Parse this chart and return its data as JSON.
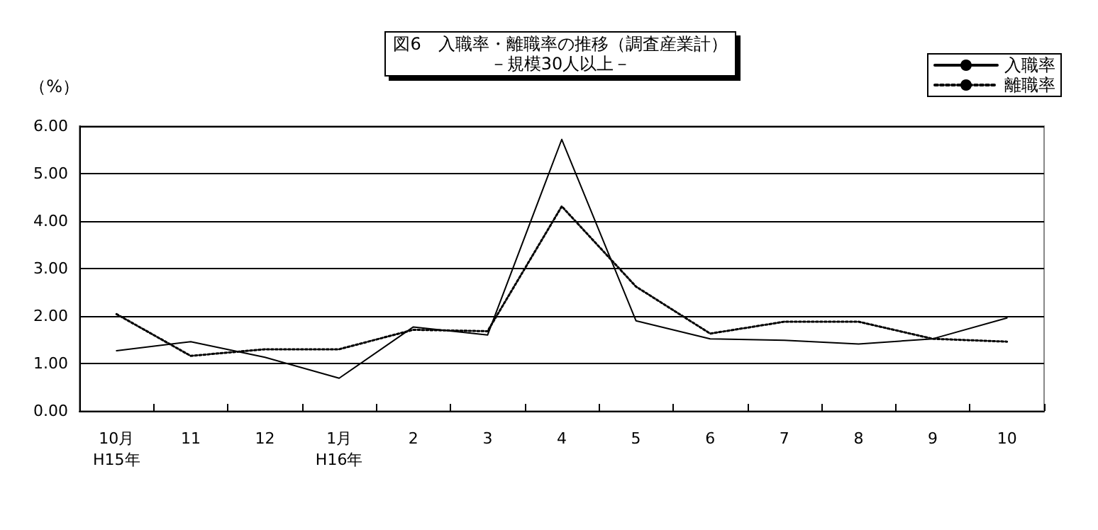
{
  "chart_data": {
    "type": "line",
    "title": "図6　入職率・離職率の推移（調査産業計）",
    "subtitle": "－規模30人以上－",
    "ylabel": "（%）",
    "categories": [
      "10月\nH15年",
      "11",
      "12",
      "1月\nH16年",
      "2",
      "3",
      "4",
      "5",
      "6",
      "7",
      "8",
      "9",
      "10"
    ],
    "series": [
      {
        "name": "入職率",
        "color": "#000000",
        "line_style": "solid",
        "values": [
          1.27,
          1.46,
          1.13,
          0.69,
          1.77,
          1.6,
          5.72,
          1.9,
          1.52,
          1.49,
          1.41,
          1.52,
          1.96
        ]
      },
      {
        "name": "離職率",
        "color": "#000000",
        "line_style": "dotted",
        "values": [
          2.04,
          1.16,
          1.3,
          1.3,
          1.71,
          1.68,
          4.31,
          2.62,
          1.63,
          1.88,
          1.88,
          1.52,
          1.46
        ]
      }
    ],
    "ylim": [
      0,
      6
    ],
    "yticks": [
      {
        "value": 0,
        "label": "0.00"
      },
      {
        "value": 1,
        "label": "1.00"
      },
      {
        "value": 2,
        "label": "2.00"
      },
      {
        "value": 3,
        "label": "3.00"
      },
      {
        "value": 4,
        "label": "4.00"
      },
      {
        "value": 5,
        "label": "5.00"
      },
      {
        "value": 6,
        "label": "6.00"
      }
    ],
    "grid": "y",
    "legend": "top right",
    "marker": "none"
  }
}
